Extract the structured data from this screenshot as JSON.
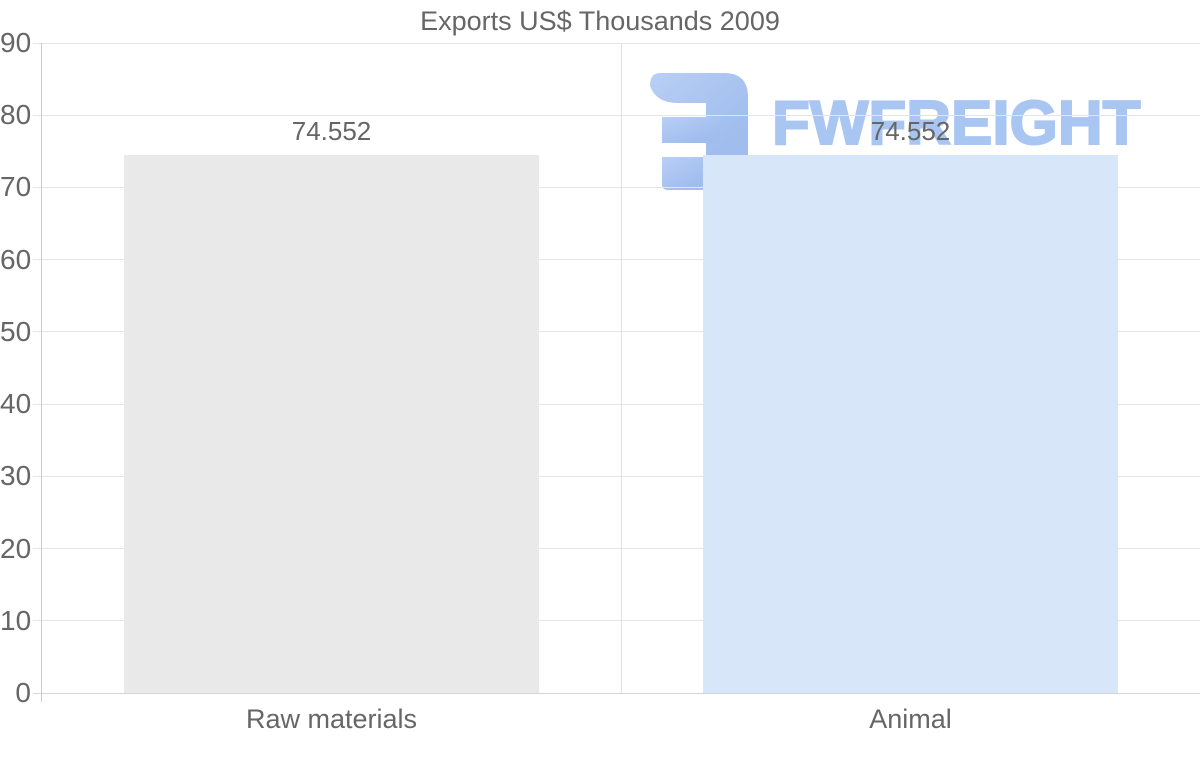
{
  "chart_data": {
    "type": "bar",
    "title": "Exports US$ Thousands 2009",
    "categories": [
      "Raw materials",
      "Animal"
    ],
    "values": [
      74.552,
      74.552
    ],
    "value_labels": [
      "74.552",
      "74.552"
    ],
    "bar_colors": [
      "#e9e9e9",
      "#d7e6f8"
    ],
    "ylim": [
      0,
      90
    ],
    "y_ticks": [
      0,
      10,
      20,
      30,
      40,
      50,
      60,
      70,
      80,
      90
    ],
    "grid": true,
    "legend": false,
    "xlabel": "",
    "ylabel": ""
  },
  "watermark": {
    "brand": "FWFREIGHT",
    "logo_icon": "fwfreight-logo"
  },
  "style": {
    "background": "#ffffff",
    "text_color": "#666666",
    "grid_color": "#e5e5e5",
    "zero_line_color": "#d4d4d4",
    "axis_color": "#cbcbcb",
    "divider_color": "#e0e0e0",
    "bar1_color": "#e9e9e9",
    "bar2_color": "#d7e6f8",
    "watermark_text_color": "#a9c6f2",
    "watermark_logo_color": "#a3bfee",
    "watermark_logo_color_light": "#b9cff5"
  }
}
